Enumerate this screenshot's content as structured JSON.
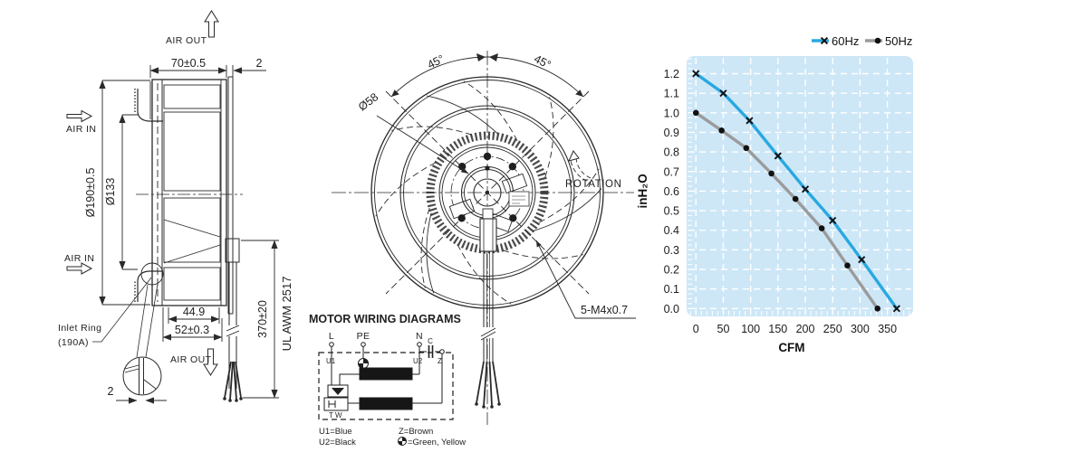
{
  "side_view": {
    "air_out_top": "AIR OUT",
    "air_in": "AIR IN",
    "air_out_bottom": "AIR OUT",
    "dim_depth": "70±0.5",
    "dim_plate_thickness_top": "2",
    "dim_outer_diameter": "Ø190±0.5",
    "dim_inlet_diameter": "Ø133",
    "dim_hub_depth": "44.9",
    "dim_housing_depth": "52±0.3",
    "dim_lead_length": "370±20",
    "lead_wire_marking": "UL AWM 2517",
    "inlet_ring_line1": "Inlet Ring",
    "inlet_ring_line2": "(190A)",
    "dim_ring_thickness": "2"
  },
  "front_view": {
    "dim_angle_left": "45°",
    "dim_angle_right": "45°",
    "dim_hub_diameter": "Ø58",
    "rotation_label": "ROTATION",
    "thread_spec": "5-M4x0.7"
  },
  "wiring_diagram": {
    "title": "MOTOR WIRING DIAGRAMS",
    "terminal_l": "L",
    "terminal_pe": "PE",
    "terminal_n": "N",
    "capacitor": "C",
    "winding_u1": "U1",
    "winding_u2": "U2",
    "winding_z": "Z",
    "thermal_protector": "T W",
    "legend_u1": "U1=Blue",
    "legend_u2": "U2=Black",
    "legend_z": "Z=Brown",
    "legend_earth": "=Green, Yellow"
  },
  "chart_data": {
    "type": "line",
    "title": "",
    "xlabel": "CFM",
    "ylabel": "inH₂O",
    "x_ticks": [
      0,
      50,
      100,
      150,
      200,
      250,
      300,
      350
    ],
    "y_ticks": [
      0,
      0.1,
      0.2,
      0.3,
      0.4,
      0.5,
      0.6,
      0.7,
      0.8,
      0.9,
      1.0,
      1.1,
      1.2
    ],
    "xlim": [
      -17,
      397
    ],
    "ylim": [
      -0.04,
      1.29
    ],
    "plot_bg": "#cde7f7",
    "grid": {
      "color": "#ffffff",
      "style": "dashed"
    },
    "legend_position": "top-right",
    "series": [
      {
        "name": "60Hz",
        "color": "#29a8e0",
        "marker": "x",
        "marker_color": "#111111",
        "points": [
          [
            0,
            1.2
          ],
          [
            50,
            1.1
          ],
          [
            98,
            0.96
          ],
          [
            150,
            0.78
          ],
          [
            200,
            0.61
          ],
          [
            250,
            0.45
          ],
          [
            303,
            0.25
          ],
          [
            367,
            0
          ]
        ]
      },
      {
        "name": "50Hz",
        "color": "#9b9b9b",
        "marker": "dot",
        "marker_color": "#111111",
        "points": [
          [
            0,
            1.0
          ],
          [
            47,
            0.91
          ],
          [
            92,
            0.82
          ],
          [
            138,
            0.69
          ],
          [
            182,
            0.56
          ],
          [
            230,
            0.41
          ],
          [
            277,
            0.22
          ],
          [
            332,
            0
          ]
        ]
      }
    ]
  }
}
